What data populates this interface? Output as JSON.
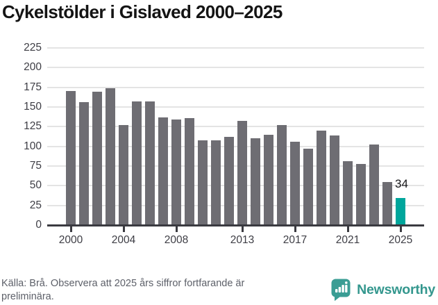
{
  "title": "Cykelstölder i Gislaved 2000–2025",
  "source_note": "Källa: Brå. Observera att 2025 års siffror fortfarande är preliminära.",
  "logo": {
    "text": "Newsworthy",
    "icon": "newsworthy-speech-bubble-bar-chart-icon"
  },
  "colors": {
    "bar": "#6e6d73",
    "highlight": "#00a69c",
    "axis": "#3a3a40",
    "grid": "#e4e4e4",
    "title_text": "#141414",
    "tick_text": "#3d3d44",
    "footer_text": "#5d6069",
    "logo_teal": "#3a9d94",
    "annotation_text": "#17171a"
  },
  "chart_data": {
    "type": "bar",
    "title": "Cykelstölder i Gislaved 2000–2025",
    "categories": [
      2000,
      2001,
      2002,
      2003,
      2004,
      2005,
      2006,
      2007,
      2008,
      2009,
      2010,
      2011,
      2012,
      2013,
      2014,
      2015,
      2016,
      2017,
      2018,
      2019,
      2020,
      2021,
      2022,
      2023,
      2024,
      2025
    ],
    "values": [
      170,
      156,
      169,
      174,
      127,
      157,
      157,
      137,
      134,
      136,
      108,
      108,
      112,
      132,
      110,
      115,
      127,
      106,
      97,
      120,
      114,
      81,
      78,
      102,
      55,
      34
    ],
    "highlight_index": 25,
    "highlight_label": "34",
    "ylabel": "",
    "xlabel": "",
    "ylim": [
      0,
      225
    ],
    "yticks": [
      0,
      25,
      50,
      75,
      100,
      125,
      150,
      175,
      200,
      225
    ],
    "xtick_labels": [
      2000,
      2004,
      2008,
      2013,
      2017,
      2021,
      2025
    ],
    "grid": "horizontal",
    "legend": "none"
  }
}
